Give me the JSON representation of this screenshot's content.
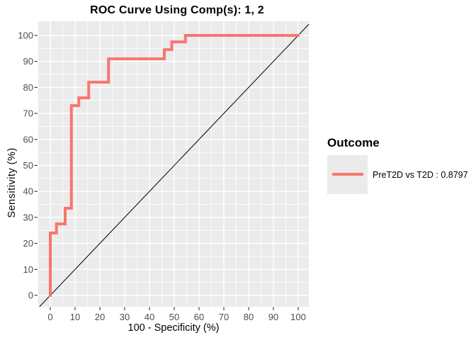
{
  "chart_data": {
    "type": "line",
    "subtype": "roc-step-curve",
    "title": "ROC Curve Using Comp(s): 1, 2",
    "xlabel": "100 - Specificity (%)",
    "ylabel": "Sensitivity (%)",
    "xlim": [
      0,
      100
    ],
    "ylim": [
      0,
      100
    ],
    "xticks": [
      0,
      10,
      20,
      30,
      40,
      50,
      60,
      70,
      80,
      90,
      100
    ],
    "yticks": [
      0,
      10,
      20,
      30,
      40,
      50,
      60,
      70,
      80,
      90,
      100
    ],
    "grid": {
      "major": true,
      "minor": true
    },
    "style": {
      "panel_bg": "#EBEBEB",
      "grid_color": "#FFFFFF",
      "tick_mark_color": "#333333",
      "tick_label_color": "#4D4D4D"
    },
    "series": [
      {
        "name": "PreT2D vs T2D : 0.8797",
        "type": "step",
        "color": "#F8766D",
        "stroke_width": 4,
        "points": [
          [
            0,
            0
          ],
          [
            0,
            24
          ],
          [
            2.5,
            24
          ],
          [
            2.5,
            27.5
          ],
          [
            6,
            27.5
          ],
          [
            6,
            33.5
          ],
          [
            8.5,
            33.5
          ],
          [
            8.5,
            73
          ],
          [
            11.5,
            73
          ],
          [
            11.5,
            76
          ],
          [
            15.5,
            76
          ],
          [
            15.5,
            82
          ],
          [
            23.5,
            82
          ],
          [
            23.5,
            91
          ],
          [
            46,
            91
          ],
          [
            46,
            94.5
          ],
          [
            49,
            94.5
          ],
          [
            49,
            97.5
          ],
          [
            54.5,
            97.5
          ],
          [
            54.5,
            100
          ],
          [
            100,
            100
          ]
        ]
      }
    ],
    "reference_line": {
      "label": "chance diagonal y = x",
      "color": "#000000"
    },
    "legend": {
      "title": "Outcome",
      "position": "right",
      "entries": [
        {
          "label": "PreT2D vs T2D : 0.8797",
          "comparison": "PreT2D vs T2D",
          "auc": 0.8797,
          "color": "#F8766D"
        }
      ]
    }
  }
}
